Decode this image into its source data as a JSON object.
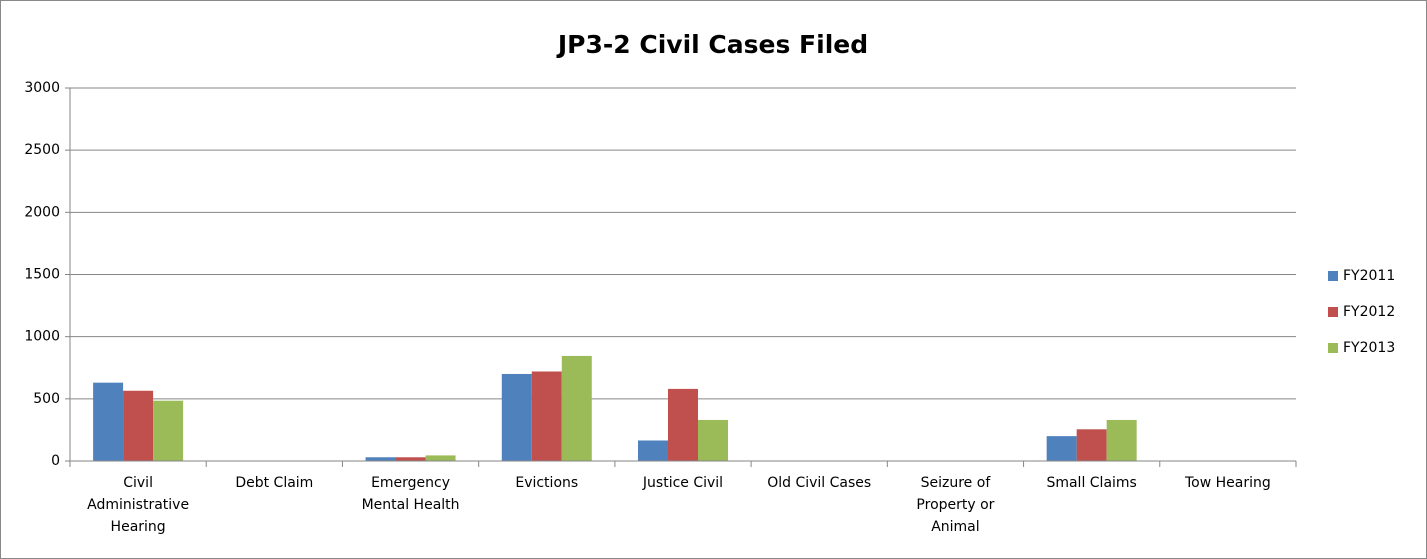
{
  "chart_data": {
    "type": "bar",
    "title": "JP3-2 Civil Cases Filed",
    "categories": [
      "Civil Administrative Hearing",
      "Debt Claim",
      "Emergency Mental Health",
      "Evictions",
      "Justice Civil",
      "Old Civil Cases",
      "Seizure of Property or Animal",
      "Small Claims",
      "Tow Hearing"
    ],
    "series": [
      {
        "name": "FY2011",
        "color": "#4f81bd",
        "values": [
          630,
          0,
          30,
          700,
          165,
          0,
          0,
          200,
          0
        ]
      },
      {
        "name": "FY2012",
        "color": "#c0504d",
        "values": [
          565,
          0,
          30,
          720,
          580,
          0,
          0,
          255,
          0
        ]
      },
      {
        "name": "FY2013",
        "color": "#9bbb59",
        "values": [
          485,
          0,
          45,
          845,
          330,
          0,
          0,
          330,
          0
        ]
      }
    ],
    "ylim": [
      0,
      3000
    ],
    "yticks": [
      0,
      500,
      1000,
      1500,
      2000,
      2500,
      3000
    ],
    "grid": true,
    "legend": "right"
  }
}
